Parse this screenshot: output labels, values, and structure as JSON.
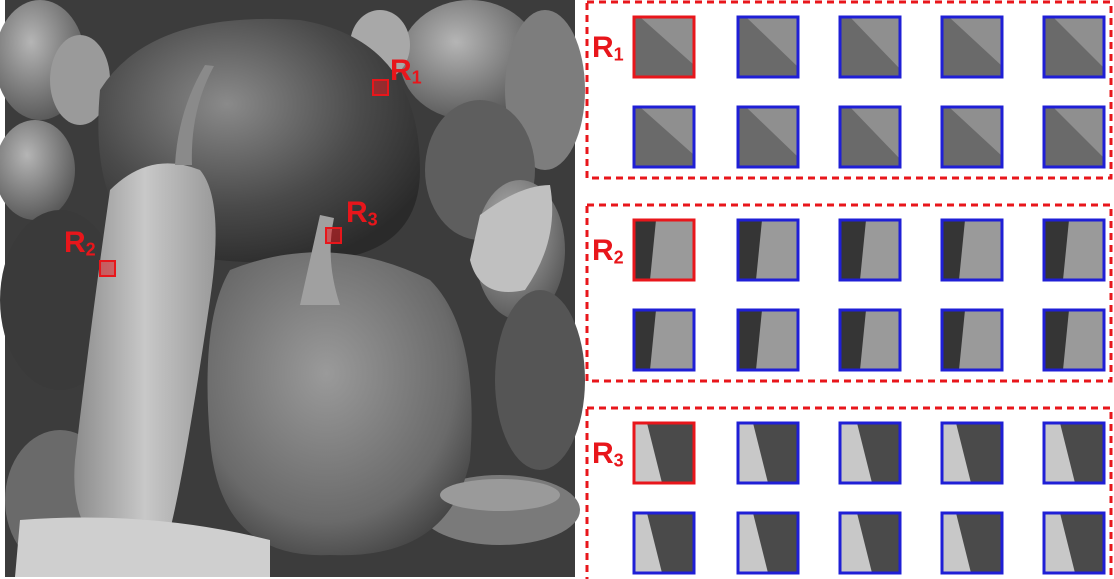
{
  "regions": [
    {
      "label": "R",
      "subscript": "1"
    },
    {
      "label": "R",
      "subscript": "2"
    },
    {
      "label": "R",
      "subscript": "3"
    }
  ]
}
